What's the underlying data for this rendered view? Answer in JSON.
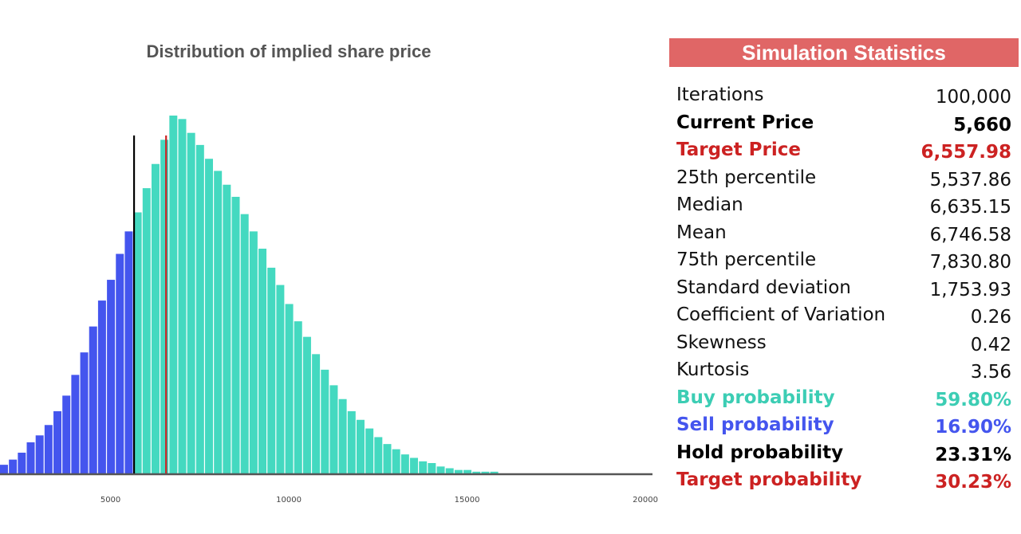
{
  "chart_data": {
    "type": "bar",
    "title": "Distribution of implied share price",
    "xlabel": "",
    "ylabel": "",
    "xlim": [
      1900,
      20200
    ],
    "bin_width": 250,
    "bin_start": 1900,
    "x_ticks": [
      5000,
      10000,
      15000,
      20000
    ],
    "grid": false,
    "values": [
      5,
      8,
      12,
      18,
      22,
      28,
      36,
      45,
      57,
      70,
      85,
      100,
      112,
      127,
      140,
      151,
      165,
      179,
      193,
      207,
      205,
      197,
      190,
      182,
      175,
      167,
      160,
      150,
      140,
      130,
      119,
      109,
      98,
      88,
      79,
      69,
      60,
      51,
      43,
      36,
      31,
      26,
      21,
      17,
      14,
      11,
      9,
      7,
      6,
      4,
      3,
      2,
      2,
      1,
      1,
      1
    ],
    "reference_lines": [
      {
        "name": "Current Price",
        "x": 5660,
        "color": "#000000"
      },
      {
        "name": "Target Price",
        "x": 6557.98,
        "color": "#cc2222"
      }
    ],
    "colors": {
      "sell": "#4455ee",
      "buy": "#44d9c0",
      "axis": "#555555"
    }
  },
  "stats": {
    "title": "Simulation Statistics",
    "rows": [
      {
        "label": "Iterations",
        "value": "100,000",
        "color": "#111111",
        "bold": false
      },
      {
        "label": "Current Price",
        "value": "5,660",
        "color": "#000000",
        "bold": true
      },
      {
        "label": "Target Price",
        "value": "6,557.98",
        "color": "#cc2222",
        "bold": true
      },
      {
        "label": "25th percentile",
        "value": "5,537.86",
        "color": "#111111",
        "bold": false
      },
      {
        "label": "Median",
        "value": "6,635.15",
        "color": "#111111",
        "bold": false
      },
      {
        "label": "Mean",
        "value": "6,746.58",
        "color": "#111111",
        "bold": false
      },
      {
        "label": "75th percentile",
        "value": "7,830.80",
        "color": "#111111",
        "bold": false
      },
      {
        "label": "Standard deviation",
        "value": "1,753.93",
        "color": "#111111",
        "bold": false
      },
      {
        "label": "Coefficient of Variation",
        "value": "0.26",
        "color": "#111111",
        "bold": false
      },
      {
        "label": "Skewness",
        "value": "0.42",
        "color": "#111111",
        "bold": false
      },
      {
        "label": "Kurtosis",
        "value": "3.56",
        "color": "#111111",
        "bold": false
      },
      {
        "label": "Buy probability",
        "value": "59.80%",
        "color": "#3ccdb4",
        "bold": true
      },
      {
        "label": "Sell probability",
        "value": "16.90%",
        "color": "#4455ee",
        "bold": true
      },
      {
        "label": "Hold probability",
        "value": "23.31%",
        "color": "#000000",
        "bold": true
      },
      {
        "label": "Target probability",
        "value": "30.23%",
        "color": "#cc2222",
        "bold": true
      }
    ]
  }
}
